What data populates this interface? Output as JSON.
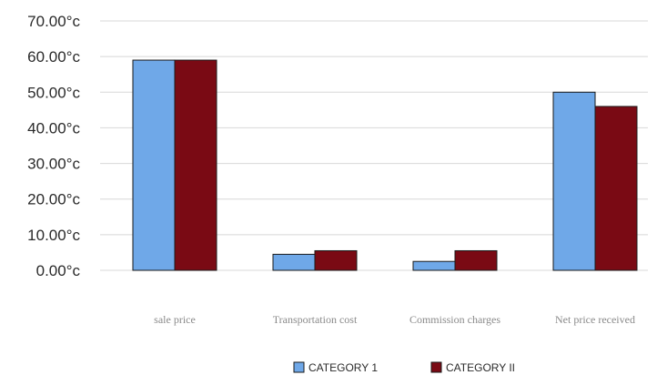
{
  "chart_data": {
    "type": "bar",
    "title": "",
    "xlabel": "",
    "ylabel": "",
    "ylim": [
      0,
      70
    ],
    "y_tick_labels": [
      "0.00°c",
      "10.00°c",
      "20.00°c",
      "30.00°c",
      "40.00°c",
      "50.00°c",
      "60.00°c",
      "70.00°c"
    ],
    "categories": [
      "sale price",
      "Transportation cost",
      "Commission charges",
      "Net price received"
    ],
    "series": [
      {
        "name": "CATEGORY 1",
        "color": "#6fa8e8",
        "values": [
          59,
          4.5,
          2.5,
          50
        ]
      },
      {
        "name": "CATEGORY II",
        "color": "#7a0a14",
        "values": [
          59,
          5.5,
          5.5,
          46
        ]
      }
    ],
    "grid": true,
    "legend_position": "bottom"
  }
}
